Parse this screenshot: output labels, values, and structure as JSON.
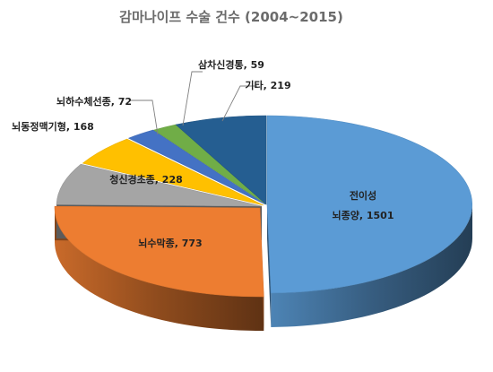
{
  "chart_data": {
    "type": "pie",
    "title": "감마나이프 수술 건수 (2004~2015)",
    "categories": [
      "전이성 뇌종양",
      "뇌수막종",
      "청신경초종",
      "뇌동정맥기형",
      "뇌하수체선종",
      "삼차신경통",
      "기타"
    ],
    "values": [
      1501,
      773,
      228,
      168,
      72,
      59,
      219
    ],
    "labels": [
      {
        "lines": [
          "전이성",
          "뇌종양, 1501"
        ]
      },
      {
        "lines": [
          "뇌수막종, 773"
        ]
      },
      {
        "lines": [
          "청신경초종, 228"
        ]
      },
      {
        "lines": [
          "뇌동정맥기형, 168"
        ]
      },
      {
        "lines": [
          "뇌하수체선종, 72"
        ]
      },
      {
        "lines": [
          "삼차신경통, 59"
        ]
      },
      {
        "lines": [
          "기타, 219"
        ]
      }
    ],
    "colors": [
      "#5b9bd5",
      "#ed7d31",
      "#a5a5a5",
      "#ffc000",
      "#4472c4",
      "#70ad47",
      "#255e91"
    ],
    "style": "3d-exploded-pie",
    "legend": "none"
  }
}
